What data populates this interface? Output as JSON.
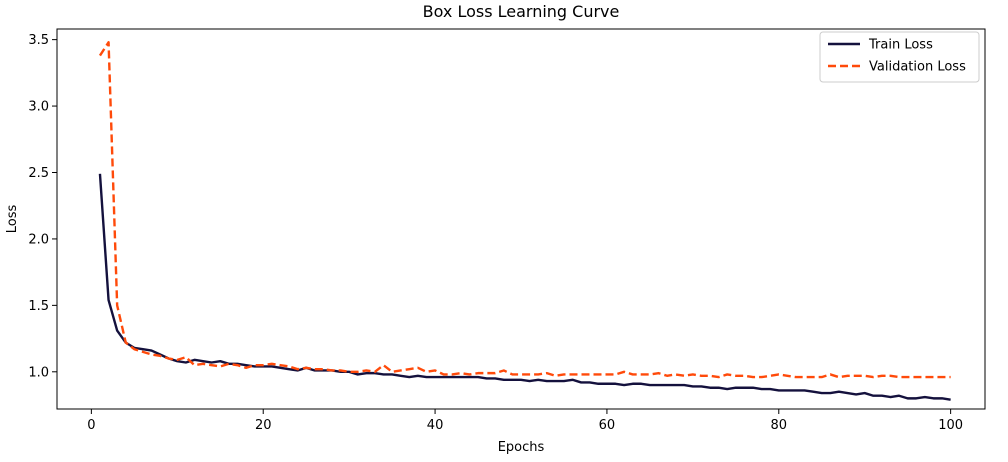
{
  "chart_data": {
    "type": "line",
    "title": "Box Loss Learning Curve",
    "xlabel": "Epochs",
    "ylabel": "Loss",
    "xlim": [
      -4,
      104
    ],
    "ylim": [
      0.72,
      3.58
    ],
    "xticks": [
      0,
      20,
      40,
      60,
      80,
      100
    ],
    "yticks": [
      1.0,
      1.5,
      2.0,
      2.5,
      3.0,
      3.5
    ],
    "ytick_labels": [
      "1.0",
      "1.5",
      "2.0",
      "2.5",
      "3.0",
      "3.5"
    ],
    "legend_position": "top-right",
    "grid": false,
    "series": [
      {
        "name": "Train Loss",
        "color": "#14113d",
        "style": "solid",
        "x": [
          1,
          2,
          3,
          4,
          5,
          6,
          7,
          8,
          9,
          10,
          11,
          12,
          13,
          14,
          15,
          16,
          17,
          18,
          19,
          20,
          21,
          22,
          23,
          24,
          25,
          26,
          27,
          28,
          29,
          30,
          31,
          32,
          33,
          34,
          35,
          36,
          37,
          38,
          39,
          40,
          41,
          42,
          43,
          44,
          45,
          46,
          47,
          48,
          49,
          50,
          51,
          52,
          53,
          54,
          55,
          56,
          57,
          58,
          59,
          60,
          61,
          62,
          63,
          64,
          65,
          66,
          67,
          68,
          69,
          70,
          71,
          72,
          73,
          74,
          75,
          76,
          77,
          78,
          79,
          80,
          81,
          82,
          83,
          84,
          85,
          86,
          87,
          88,
          89,
          90,
          91,
          92,
          93,
          94,
          95,
          96,
          97,
          98,
          99,
          100
        ],
        "values": [
          2.49,
          1.54,
          1.31,
          1.22,
          1.18,
          1.17,
          1.16,
          1.13,
          1.1,
          1.08,
          1.07,
          1.09,
          1.08,
          1.07,
          1.08,
          1.06,
          1.06,
          1.05,
          1.04,
          1.04,
          1.04,
          1.03,
          1.02,
          1.01,
          1.03,
          1.01,
          1.01,
          1.01,
          1.0,
          1.0,
          0.98,
          0.99,
          0.99,
          0.98,
          0.98,
          0.97,
          0.96,
          0.97,
          0.96,
          0.96,
          0.96,
          0.96,
          0.96,
          0.96,
          0.96,
          0.95,
          0.95,
          0.94,
          0.94,
          0.94,
          0.93,
          0.94,
          0.93,
          0.93,
          0.93,
          0.94,
          0.92,
          0.92,
          0.91,
          0.91,
          0.91,
          0.9,
          0.91,
          0.91,
          0.9,
          0.9,
          0.9,
          0.9,
          0.9,
          0.89,
          0.89,
          0.88,
          0.88,
          0.87,
          0.88,
          0.88,
          0.88,
          0.87,
          0.87,
          0.86,
          0.86,
          0.86,
          0.86,
          0.85,
          0.84,
          0.84,
          0.85,
          0.84,
          0.83,
          0.84,
          0.82,
          0.82,
          0.81,
          0.82,
          0.8,
          0.8,
          0.81,
          0.8,
          0.8,
          0.79
        ]
      },
      {
        "name": "Validation Loss",
        "color": "#ff4a0a",
        "style": "dashed",
        "x": [
          1,
          2,
          3,
          4,
          5,
          6,
          7,
          8,
          9,
          10,
          11,
          12,
          13,
          14,
          15,
          16,
          17,
          18,
          19,
          20,
          21,
          22,
          23,
          24,
          25,
          26,
          27,
          28,
          29,
          30,
          31,
          32,
          33,
          34,
          35,
          36,
          37,
          38,
          39,
          40,
          41,
          42,
          43,
          44,
          45,
          46,
          47,
          48,
          49,
          50,
          51,
          52,
          53,
          54,
          55,
          56,
          57,
          58,
          59,
          60,
          61,
          62,
          63,
          64,
          65,
          66,
          67,
          68,
          69,
          70,
          71,
          72,
          73,
          74,
          75,
          76,
          77,
          78,
          79,
          80,
          81,
          82,
          83,
          84,
          85,
          86,
          87,
          88,
          89,
          90,
          91,
          92,
          93,
          94,
          95,
          96,
          97,
          98,
          99,
          100
        ],
        "values": [
          3.38,
          3.48,
          1.5,
          1.22,
          1.17,
          1.15,
          1.13,
          1.12,
          1.1,
          1.09,
          1.11,
          1.05,
          1.06,
          1.05,
          1.04,
          1.06,
          1.05,
          1.03,
          1.05,
          1.05,
          1.06,
          1.05,
          1.04,
          1.02,
          1.03,
          1.02,
          1.02,
          1.01,
          1.01,
          1.0,
          1.0,
          1.01,
          1.0,
          1.05,
          1.0,
          1.01,
          1.02,
          1.03,
          1.0,
          1.01,
          0.98,
          0.98,
          0.99,
          0.98,
          0.99,
          0.99,
          0.99,
          1.01,
          0.98,
          0.98,
          0.98,
          0.98,
          0.99,
          0.97,
          0.98,
          0.98,
          0.98,
          0.98,
          0.98,
          0.98,
          0.98,
          1.0,
          0.98,
          0.98,
          0.98,
          0.99,
          0.97,
          0.98,
          0.97,
          0.98,
          0.97,
          0.97,
          0.96,
          0.98,
          0.97,
          0.97,
          0.96,
          0.96,
          0.97,
          0.98,
          0.97,
          0.96,
          0.96,
          0.96,
          0.96,
          0.98,
          0.96,
          0.97,
          0.97,
          0.97,
          0.96,
          0.97,
          0.97,
          0.96,
          0.96,
          0.96,
          0.96,
          0.96,
          0.96,
          0.96
        ]
      }
    ]
  }
}
